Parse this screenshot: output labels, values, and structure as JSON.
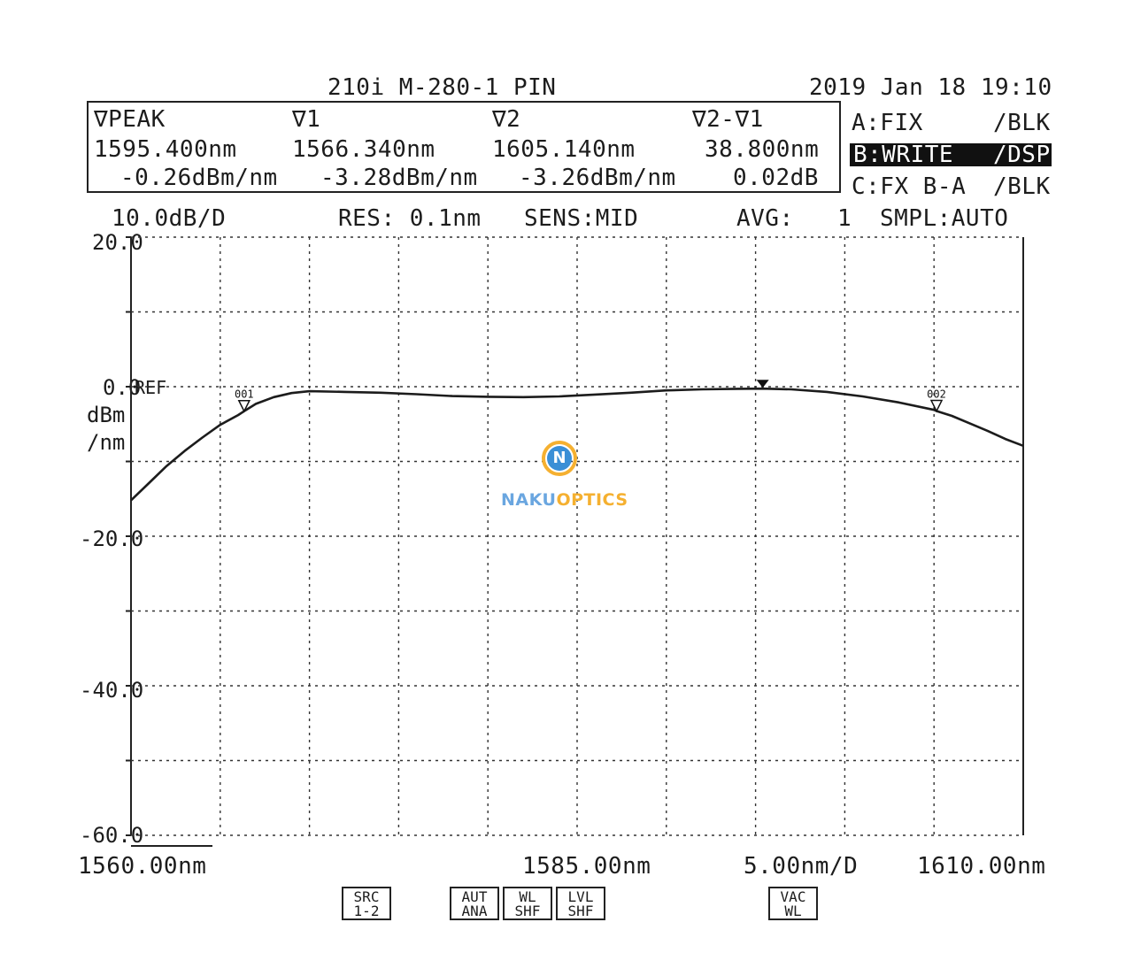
{
  "header": {
    "title": "210i M-280-1 PIN",
    "datetime": "2019 Jan 18 19:10"
  },
  "markers": {
    "peak": {
      "label": "∇PEAK",
      "wavelength": "1595.400nm",
      "level": "-0.26dBm/nm"
    },
    "v1": {
      "label": "∇1",
      "wavelength": "1566.340nm",
      "level": "-3.28dBm/nm"
    },
    "v2": {
      "label": "∇2",
      "wavelength": "1605.140nm",
      "level": "-3.26dBm/nm"
    },
    "diff": {
      "label": "∇2-∇1",
      "wavelength": "38.800nm",
      "level": "0.02dB"
    }
  },
  "traces": {
    "a": {
      "mode": "A:FIX",
      "state": "/BLK"
    },
    "b": {
      "mode": "B:WRITE",
      "state": "/DSP"
    },
    "c": {
      "mode": "C:FX B-A",
      "state": "/BLK"
    }
  },
  "settings": {
    "scale": "10.0dB/D",
    "res": "RES: 0.1nm",
    "sens": "SENS:MID",
    "avg_label": "AVG:",
    "avg_value": "1",
    "smpl": "SMPL:AUTO"
  },
  "buttons": {
    "src": [
      "SRC",
      "1-2"
    ],
    "aut": [
      "AUT",
      "ANA"
    ],
    "wl_shf": [
      "WL",
      "SHF"
    ],
    "lvl_shf": [
      "LVL",
      "SHF"
    ],
    "vac": [
      "VAC",
      "WL"
    ]
  },
  "watermark": {
    "part1": "NAKU",
    "part2": "OPTICS",
    "letter": "N"
  },
  "colors": {
    "trace": "#1c1c1c",
    "grid": "#333333",
    "logo_blue": "#3a8fd6",
    "logo_orange": "#f5b030"
  },
  "chart_data": {
    "type": "line",
    "x_unit": "nm",
    "y_unit": "dBm/nm",
    "xlim": [
      1560,
      1610
    ],
    "ylim": [
      -60,
      20
    ],
    "x_divisions": 10,
    "y_divisions": 8,
    "grid": true,
    "ref_level": 0,
    "ref_label": "REF",
    "ylabel_lines": [
      "dBm",
      "/nm"
    ],
    "yticks": [
      {
        "value": 20,
        "label": "20.0"
      },
      {
        "value": 0,
        "label": "0.0"
      },
      {
        "value": -20,
        "label": "-20.0"
      },
      {
        "value": -40,
        "label": "-40.0"
      },
      {
        "value": -60,
        "label": "-60.0"
      }
    ],
    "x_start_label": "1560.00nm",
    "x_center_label": "1585.00nm",
    "x_span_label": "5.00nm/D",
    "x_end_label": "1610.00nm",
    "series": [
      {
        "x": [
          1560,
          1561,
          1562,
          1563,
          1564,
          1565,
          1566,
          1566.34,
          1567,
          1568,
          1569,
          1570,
          1572,
          1574,
          1576,
          1578,
          1580,
          1582,
          1584,
          1586,
          1588,
          1590,
          1592,
          1594,
          1595.4,
          1597,
          1599,
          1601,
          1603,
          1605,
          1605.14,
          1606,
          1607,
          1608,
          1609,
          1610
        ],
        "y": [
          -15.2,
          -12.9,
          -10.6,
          -8.6,
          -6.8,
          -5.1,
          -3.8,
          -3.28,
          -2.3,
          -1.4,
          -0.85,
          -0.6,
          -0.7,
          -0.8,
          -1.0,
          -1.25,
          -1.35,
          -1.4,
          -1.3,
          -1.05,
          -0.8,
          -0.5,
          -0.35,
          -0.28,
          -0.26,
          -0.35,
          -0.7,
          -1.3,
          -2.1,
          -3.1,
          -3.26,
          -3.9,
          -4.9,
          -5.9,
          -7.0,
          -7.9
        ]
      }
    ],
    "markers": [
      {
        "name": "001",
        "x": 1566.34,
        "y": -3.28
      },
      {
        "name": "002",
        "x": 1605.14,
        "y": -3.26
      },
      {
        "name": "PEAK",
        "x": 1595.4,
        "y": -0.26
      }
    ]
  }
}
